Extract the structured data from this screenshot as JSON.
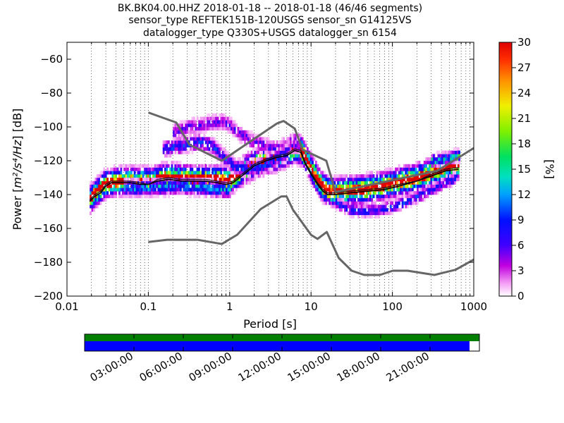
{
  "chart_data": {
    "type": "heatmap",
    "title_lines": [
      "BK.BK04.00.HHZ   2018-01-18 -- 2018-01-18  (46/46 segments)",
      "sensor_type REFTEK151B-120USGS sensor_sn G14125VS",
      "datalogger_type Q330S+USGS datalogger_sn 6154"
    ],
    "xlabel": "Period [s]",
    "ylabel_prefix": "Power [",
    "ylabel_math": "m²/s⁴/Hz",
    "ylabel_suffix": "] [dB]",
    "xscale": "log",
    "xlim": [
      0.01,
      1000
    ],
    "ylim": [
      -200,
      -50
    ],
    "x_ticks": [
      0.01,
      0.1,
      1,
      10,
      100,
      1000
    ],
    "x_tick_labels": [
      "0.01",
      "0.1",
      "1",
      "10",
      "100",
      "1000"
    ],
    "y_ticks": [
      -200,
      -180,
      -160,
      -140,
      -120,
      -100,
      -80,
      -60
    ],
    "y_tick_labels": [
      "−200",
      "−180",
      "−160",
      "−140",
      "−120",
      "−100",
      "−80",
      "−60"
    ],
    "grid": "dotted vertical",
    "colorbar": {
      "label": "[%]",
      "range": [
        0,
        30
      ],
      "ticks": [
        0,
        3,
        6,
        9,
        12,
        15,
        18,
        21,
        24,
        27,
        30
      ],
      "tick_labels": [
        "0",
        "3",
        "6",
        "9",
        "12",
        "15",
        "18",
        "21",
        "24",
        "27",
        "30"
      ]
    },
    "nhnm": {
      "x": [
        0.1,
        0.22,
        0.32,
        0.8,
        3.8,
        4.6,
        6.3,
        7.9,
        15.4,
        20,
        354.8,
        1000
      ],
      "y": [
        -91.5,
        -97.4,
        -110.5,
        -120.0,
        -98.0,
        -96.5,
        -101.0,
        -113.5,
        -120.0,
        -138.5,
        -126.0,
        -112.5
      ]
    },
    "nlnm": {
      "x": [
        0.1,
        0.17,
        0.4,
        0.8,
        1.24,
        2.4,
        4.3,
        5.0,
        6.0,
        10.0,
        12.0,
        15.6,
        21.9,
        31.6,
        45.0,
        70.0,
        101.0,
        154.0,
        328.0,
        600.0,
        1000.0
      ],
      "y": [
        -168.0,
        -166.7,
        -166.7,
        -169.2,
        -163.7,
        -148.6,
        -141.1,
        -141.1,
        -149.0,
        -163.8,
        -166.2,
        -162.1,
        -177.5,
        -185.0,
        -187.5,
        -187.5,
        -185.0,
        -185.0,
        -187.5,
        -184.4,
        -178.4
      ]
    },
    "mode": {
      "x": [
        0.019,
        0.022,
        0.026,
        0.03,
        0.035,
        0.045,
        0.06,
        0.08,
        0.1,
        0.13,
        0.18,
        0.25,
        0.35,
        0.5,
        0.7,
        0.9,
        1.1,
        1.5,
        2,
        2.8,
        3.8,
        5,
        6.3,
        7.5,
        8.5,
        10,
        12,
        14,
        16,
        20,
        30,
        50,
        80,
        120,
        200,
        300,
        450,
        650
      ],
      "y": [
        -143,
        -140,
        -138,
        -134,
        -132,
        -132,
        -132,
        -133,
        -134,
        -131,
        -130,
        -131,
        -131,
        -131,
        -132,
        -133,
        -132,
        -127,
        -122,
        -119,
        -117,
        -116,
        -113,
        -114,
        -121,
        -127,
        -133,
        -137,
        -139,
        -139,
        -138,
        -137,
        -136,
        -134,
        -132,
        -128,
        -125,
        -124
      ]
    },
    "mean": {
      "x": [
        0.019,
        0.022,
        0.026,
        0.03,
        0.035,
        0.045,
        0.06,
        0.08,
        0.1,
        0.13,
        0.18,
        0.25,
        0.35,
        0.5,
        0.7,
        0.9,
        1.1,
        1.5,
        2,
        2.8,
        3.8,
        5,
        6.3,
        7.5,
        8.5,
        10,
        12,
        14,
        16,
        20,
        30,
        50,
        80,
        120,
        200,
        300,
        450,
        650
      ],
      "y": [
        -144,
        -141,
        -139,
        -135,
        -133,
        -133,
        -133,
        -134,
        -134,
        -132,
        -131,
        -132,
        -132,
        -132,
        -133,
        -134,
        -133,
        -128,
        -123,
        -120,
        -118,
        -117,
        -114,
        -115,
        -122,
        -128,
        -134,
        -138,
        -140,
        -140,
        -139,
        -138,
        -137,
        -135,
        -132,
        -129,
        -126,
        -125
      ]
    },
    "clusters": [
      {
        "x": [
          0.019,
          0.03,
          0.05,
          0.08,
          0.11,
          0.15,
          0.2,
          0.3,
          0.45,
          0.65,
          0.85,
          1.0,
          1.3,
          1.8,
          2.5,
          3.5,
          4.5,
          5.5,
          6.5,
          7.5,
          8.5,
          10,
          12,
          14,
          17,
          25,
          40,
          60,
          90,
          130,
          200,
          300,
          450,
          650
        ],
        "y": [
          -143,
          -134,
          -133,
          -133,
          -133,
          -131,
          -131,
          -132,
          -132,
          -132,
          -133,
          -132,
          -128,
          -124,
          -121,
          -119,
          -117,
          -115,
          -114,
          -115,
          -120,
          -126,
          -133,
          -137,
          -139,
          -139,
          -138,
          -137,
          -135,
          -133,
          -131,
          -128,
          -125,
          -123
        ],
        "spread": 6,
        "pct": 10
      },
      {
        "x": [
          0.2,
          0.3,
          0.5,
          0.8,
          1.0,
          1.3,
          2,
          3,
          4,
          5.5,
          7
        ],
        "y": [
          -104,
          -101,
          -99,
          -98,
          -100,
          -105,
          -110,
          -113,
          -114,
          -113,
          -112
        ],
        "spread": 4,
        "pct": 2
      },
      {
        "x": [
          0.15,
          0.25,
          0.4,
          0.6,
          0.8,
          1.1,
          1.6,
          2.5,
          3.5,
          5
        ],
        "y": [
          -114,
          -112,
          -110,
          -112,
          -118,
          -124,
          -126,
          -124,
          -120,
          -116
        ],
        "spread": 4,
        "pct": 3
      },
      {
        "x": [
          0.05,
          0.1,
          0.2,
          0.3,
          0.5,
          0.8,
          1.0
        ],
        "y": [
          -137,
          -137,
          -136,
          -136,
          -137,
          -138,
          -138
        ],
        "spread": 4,
        "pct": 4
      },
      {
        "x": [
          20,
          30,
          45,
          70,
          100,
          150,
          250,
          400,
          600
        ],
        "y": [
          -146,
          -150,
          -151,
          -150,
          -148,
          -145,
          -140,
          -135,
          -131
        ],
        "spread": 3,
        "pct": 3
      },
      {
        "x": [
          300,
          400,
          500,
          600,
          650
        ],
        "y": [
          -121,
          -120,
          -119,
          -118,
          -118
        ],
        "spread": 3,
        "pct": 5
      }
    ],
    "coverage": {
      "time_labels": [
        "03:00:00",
        "06:00:00",
        "09:00:00",
        "12:00:00",
        "15:00:00",
        "18:00:00",
        "21:00:00"
      ],
      "top_bar_fraction": 1.0,
      "bottom_bar_fraction": 0.975,
      "top_color": "#007f00",
      "bottom_color": "#0000ff"
    }
  }
}
